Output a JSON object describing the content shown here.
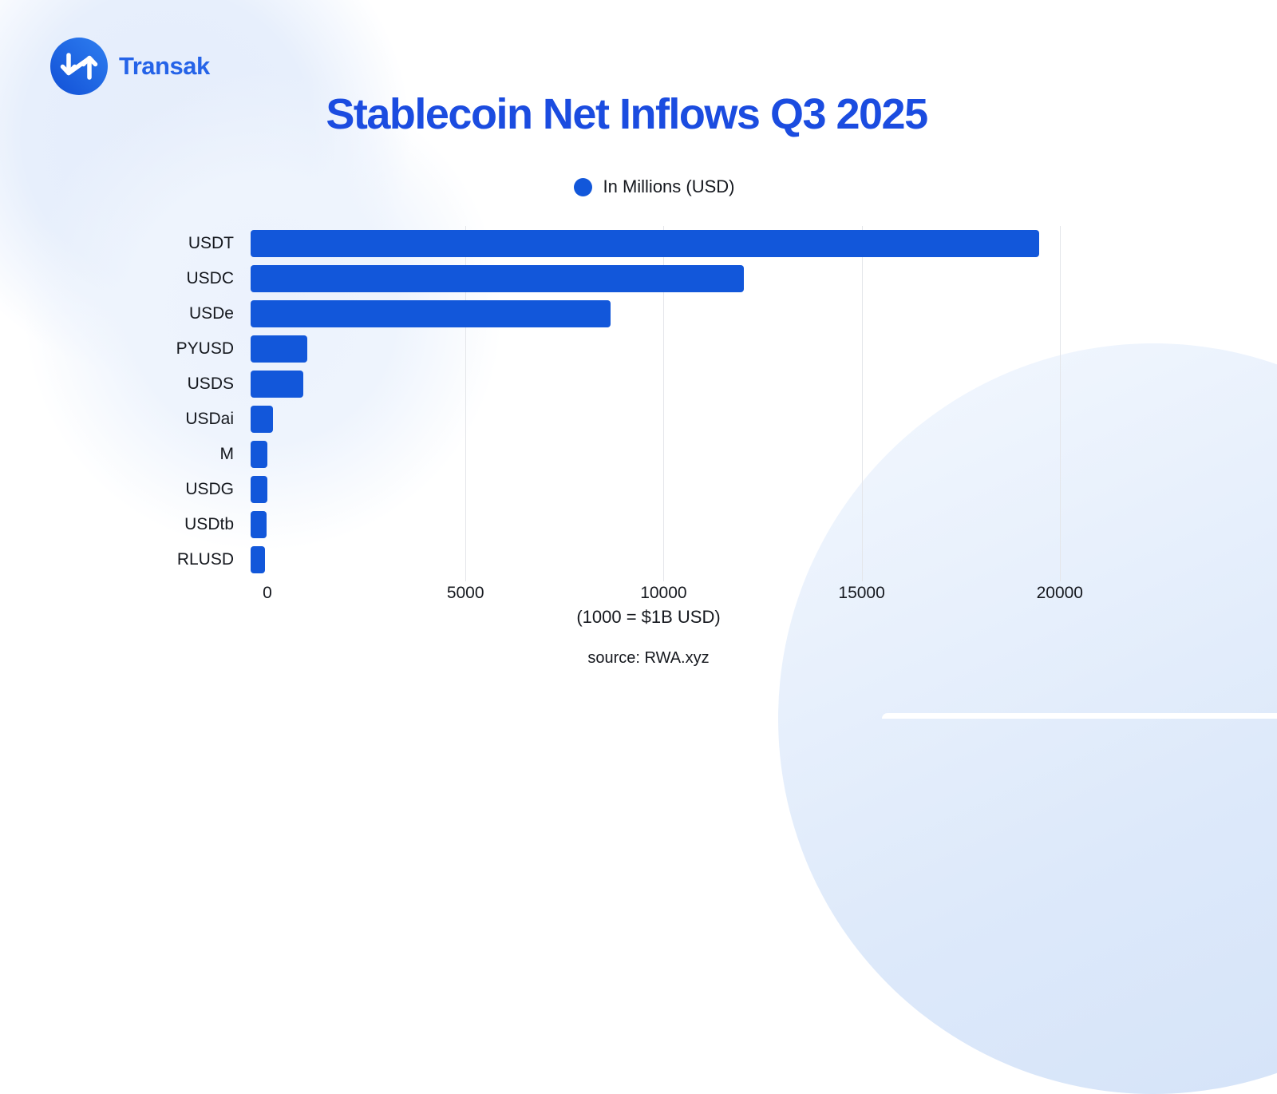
{
  "brand": {
    "name": "Transak",
    "icon": "transak-arrows-icon"
  },
  "title": "Stablecoin Net Inflows Q3 2025",
  "legend": {
    "label": "In Millions (USD)"
  },
  "chart_data": {
    "type": "bar",
    "orientation": "horizontal",
    "title": "Stablecoin Net Inflows Q3 2025",
    "series_label": "In Millions (USD)",
    "categories": [
      "USDT",
      "USDC",
      "USDe",
      "PYUSD",
      "USDS",
      "USDai",
      "M",
      "USDG",
      "USDtb",
      "RLUSD"
    ],
    "values": [
      19500,
      12200,
      8900,
      1400,
      1300,
      550,
      420,
      420,
      390,
      360
    ],
    "x_ticks": [
      0,
      5000,
      10000,
      15000,
      20000
    ],
    "xlim": [
      0,
      20850
    ],
    "xlabel": "(1000 = $1B USD)",
    "grid": "vertical",
    "legend_position": "top-center",
    "bar_color": "#1257da"
  },
  "footnotes": {
    "axis_note": "(1000 = $1B USD)",
    "source": "source: RWA.xyz"
  },
  "colors": {
    "bar": "#1257da",
    "title": "#1b4ce0",
    "brand_text": "#2563e8",
    "logo_gradient_dark": "#1250d6",
    "logo_gradient_light": "#2e7ef0",
    "grid_line": "#e4e6ea",
    "text": "#15181e",
    "background_blob": "#e6eefb"
  }
}
